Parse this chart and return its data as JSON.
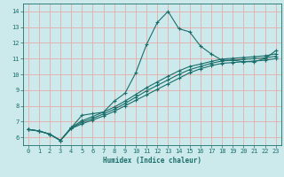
{
  "title": "",
  "xlabel": "Humidex (Indice chaleur)",
  "xlim": [
    -0.5,
    23.5
  ],
  "ylim": [
    5.5,
    14.5
  ],
  "xticks": [
    0,
    1,
    2,
    3,
    4,
    5,
    6,
    7,
    8,
    9,
    10,
    11,
    12,
    13,
    14,
    15,
    16,
    17,
    18,
    19,
    20,
    21,
    22,
    23
  ],
  "yticks": [
    6,
    7,
    8,
    9,
    10,
    11,
    12,
    13,
    14
  ],
  "bg_color": "#cce9ec",
  "grid_color": "#e8aaaa",
  "line_color": "#1a6e6a",
  "x": [
    0,
    1,
    2,
    3,
    4,
    5,
    6,
    7,
    8,
    9,
    10,
    11,
    12,
    13,
    14,
    15,
    16,
    17,
    18,
    19,
    20,
    21,
    22,
    23
  ],
  "y_main": [
    6.5,
    6.4,
    6.2,
    5.8,
    6.6,
    7.4,
    7.5,
    7.6,
    8.3,
    8.8,
    10.1,
    11.9,
    13.3,
    14.0,
    12.9,
    12.7,
    11.8,
    11.3,
    10.9,
    10.9,
    10.8,
    10.8,
    11.0,
    11.5
  ],
  "y_line1": [
    6.5,
    6.4,
    6.2,
    5.8,
    6.55,
    6.85,
    7.1,
    7.35,
    7.65,
    8.0,
    8.35,
    8.7,
    9.05,
    9.4,
    9.75,
    10.1,
    10.35,
    10.55,
    10.7,
    10.75,
    10.8,
    10.85,
    10.9,
    11.0
  ],
  "y_line2": [
    6.5,
    6.4,
    6.2,
    5.8,
    6.58,
    6.95,
    7.2,
    7.48,
    7.78,
    8.15,
    8.55,
    8.95,
    9.3,
    9.65,
    10.0,
    10.3,
    10.5,
    10.7,
    10.85,
    10.9,
    10.95,
    11.0,
    11.05,
    11.15
  ],
  "y_line3": [
    6.5,
    6.4,
    6.2,
    5.8,
    6.62,
    7.05,
    7.32,
    7.6,
    7.92,
    8.3,
    8.72,
    9.15,
    9.52,
    9.88,
    10.22,
    10.5,
    10.65,
    10.82,
    10.97,
    11.02,
    11.07,
    11.12,
    11.18,
    11.3
  ]
}
